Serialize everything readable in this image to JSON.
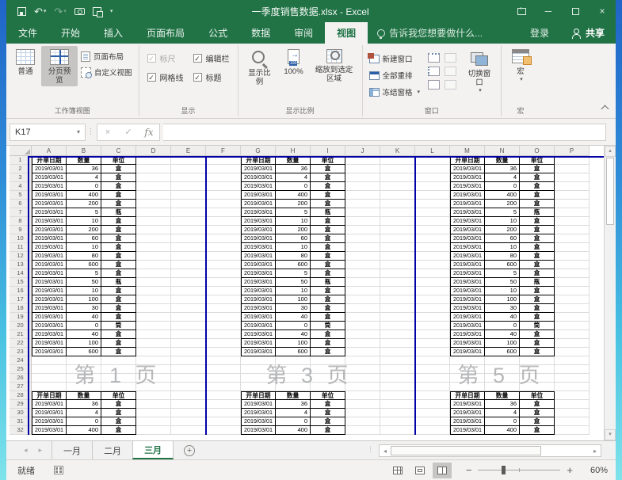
{
  "titlebar": {
    "title": "一季度销售数据.xlsx - Excel",
    "icons": [
      "save-icon",
      "undo-icon",
      "redo-icon",
      "camera-icon",
      "switch-windows-icon",
      "customize-qat-icon"
    ]
  },
  "menu": {
    "tabs": [
      "文件",
      "开始",
      "插入",
      "页面布局",
      "公式",
      "数据",
      "审阅",
      "视图"
    ],
    "active": "视图",
    "tell_me": "告诉我您想要做什么...",
    "sign_in": "登录",
    "share": "共享"
  },
  "ribbon": {
    "workbook_views": {
      "label": "工作簿视图",
      "normal": "普通",
      "page_break_preview": "分页预览",
      "page_layout": "页面布局",
      "custom_views": "自定义视图"
    },
    "show": {
      "label": "显示",
      "ruler": "标尺",
      "formula_bar": "编辑栏",
      "gridlines": "网格线",
      "headings": "标题"
    },
    "zoom": {
      "label": "显示比例",
      "zoom": "显示比例",
      "hundred": "100%",
      "zoom_to_selection": "缩放到选定区域"
    },
    "window": {
      "label": "窗口",
      "new_window": "新建窗口",
      "arrange_all": "全部重排",
      "freeze_panes": "冻结窗格",
      "switch_windows": "切换窗口"
    },
    "macros": {
      "label": "宏",
      "button": "宏"
    }
  },
  "formula_bar": {
    "name_box": "K17",
    "formula": ""
  },
  "sheet": {
    "columns": [
      "A",
      "B",
      "C",
      "D",
      "E",
      "F",
      "G",
      "H",
      "I",
      "J",
      "K",
      "L",
      "M",
      "N",
      "O",
      "P"
    ],
    "row_count": 32,
    "data_col_groups": [
      0,
      6,
      12
    ],
    "page_labels": [
      "第 1 页",
      "第 3 页",
      "第 5 页"
    ],
    "table": {
      "headers": [
        "开单日期",
        "数量",
        "单位"
      ],
      "rows": [
        [
          "2019/03/01",
          "36",
          "盒"
        ],
        [
          "2019/03/01",
          "4",
          "盒"
        ],
        [
          "2019/03/01",
          "0",
          "盒"
        ],
        [
          "2019/03/01",
          "400",
          "盒"
        ],
        [
          "2019/03/01",
          "200",
          "盒"
        ],
        [
          "2019/03/01",
          "5",
          "瓶"
        ],
        [
          "2019/03/01",
          "10",
          "盒"
        ],
        [
          "2019/03/01",
          "200",
          "盒"
        ],
        [
          "2019/03/01",
          "60",
          "盒"
        ],
        [
          "2019/03/01",
          "10",
          "盒"
        ],
        [
          "2019/03/01",
          "80",
          "盒"
        ],
        [
          "2019/03/01",
          "600",
          "盒"
        ],
        [
          "2019/03/01",
          "5",
          "盒"
        ],
        [
          "2019/03/01",
          "50",
          "瓶"
        ],
        [
          "2019/03/01",
          "10",
          "盒"
        ],
        [
          "2019/03/01",
          "100",
          "盒"
        ],
        [
          "2019/03/01",
          "30",
          "盒"
        ],
        [
          "2019/03/01",
          "40",
          "盒"
        ],
        [
          "2019/03/01",
          "0",
          "筒"
        ],
        [
          "2019/03/01",
          "40",
          "盒"
        ],
        [
          "2019/03/01",
          "100",
          "盒"
        ],
        [
          "2019/03/01",
          "600",
          "盒"
        ]
      ],
      "page2_header_row": 28,
      "page2_rows": [
        [
          "2019/03/01",
          "36",
          "盒"
        ],
        [
          "2019/03/01",
          "4",
          "盒"
        ],
        [
          "2019/03/01",
          "0",
          "盒"
        ],
        [
          "2019/03/01",
          "400",
          "盒"
        ]
      ]
    }
  },
  "sheet_tabs": {
    "tabs": [
      "一月",
      "二月",
      "三月"
    ],
    "active": "三月"
  },
  "status_bar": {
    "mode": "就绪",
    "zoom_level": "60%"
  },
  "colors": {
    "accent_green": "#217346",
    "page_break_blue": "#0202a8",
    "watermark_gray": "#a6a7a9"
  }
}
